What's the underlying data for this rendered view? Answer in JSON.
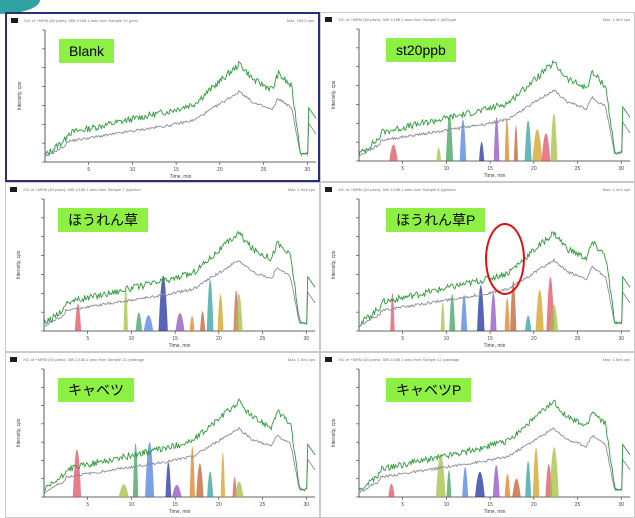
{
  "header_titles": [
    "XIC of +MRM (84 pairs): 389.1/188.1 amu from Sample 10 (pest",
    "XIC of +MRM (84 pairs): 389.1/188.1 amu from Sample 2 (st20ppb",
    "XIC of +MRM (84 pairs): 389.1/188.1 amu from Sample 7 (spinach",
    "XIC of +MRM (84 pairs): 389.1/188.1 amu from Sample 8 (spinach",
    "XIC of +MRM (84 pairs): 389.1/188.1 amu from Sample 11 (cabbage",
    "XIC of +MRM (84 pairs): 389.1/188.1 amu from Sample 12 (cabbage"
  ],
  "header_right": [
    "Max. 255.0 cps",
    "Max. 1.5e4 cps",
    "Max. 1.5e4 cps",
    "Max. 1.4e4 cps",
    "Max. 1.5e4 cps",
    "Max. 1.5e4 cps"
  ],
  "xlabel": "Time, min",
  "ylabel": "Intensity, cps",
  "chart_data": [
    {
      "type": "line",
      "title": "Blank",
      "peaks": false
    },
    {
      "type": "line",
      "title": "st20ppb",
      "peaks": true
    },
    {
      "type": "line",
      "title": "ほうれん草",
      "peaks": true
    },
    {
      "type": "line",
      "title": "ほうれん草P",
      "peaks": true
    },
    {
      "type": "line",
      "title": "キャベツ",
      "peaks": true
    },
    {
      "type": "line",
      "title": "キャベツP",
      "peaks": true
    }
  ],
  "x_ticks": [
    "5",
    "10",
    "15",
    "20",
    "25",
    "30"
  ],
  "colors": {
    "green_trace": "#2e9b3a",
    "grey_trace": "#8c8c9a",
    "label_bg": "#8ef043",
    "annotation": "#e01010",
    "selected_border": "#2a2f7a",
    "peaks": [
      "#e05060",
      "#a0c040",
      "#40a060",
      "#5080e0",
      "#2030a0",
      "#9050c0",
      "#e08020",
      "#c06030",
      "#30a0a0",
      "#d0a020"
    ]
  }
}
